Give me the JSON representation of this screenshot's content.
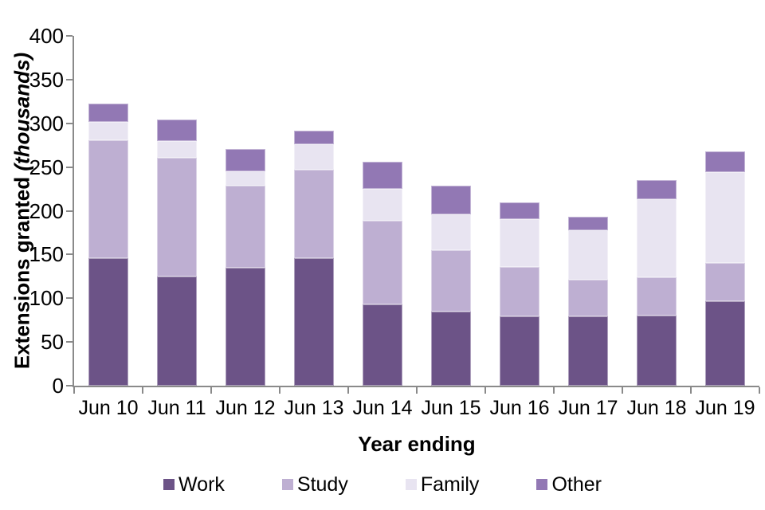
{
  "chart_data": {
    "type": "bar",
    "stacked": true,
    "xlabel": "Year ending",
    "ylabel_main": "Extensions granted",
    "ylabel_unit": "(thousands)",
    "ylim": [
      0,
      400
    ],
    "ytick_step": 50,
    "grid": false,
    "legend_position": "bottom",
    "categories": [
      "Jun 10",
      "Jun 11",
      "Jun 12",
      "Jun 13",
      "Jun 14",
      "Jun 15",
      "Jun 16",
      "Jun 17",
      "Jun 18",
      "Jun 19"
    ],
    "series": [
      {
        "name": "Work",
        "color": "#6c5387",
        "values": [
          146,
          125,
          135,
          146,
          93,
          85,
          79,
          79,
          80,
          97
        ]
      },
      {
        "name": "Study",
        "color": "#beafd2",
        "values": [
          135,
          136,
          94,
          101,
          96,
          70,
          57,
          42,
          44,
          43
        ]
      },
      {
        "name": "Family",
        "color": "#e8e4f1",
        "values": [
          21,
          19,
          16,
          29,
          36,
          41,
          54,
          57,
          89,
          104
        ]
      },
      {
        "name": "Other",
        "color": "#9278b4",
        "values": [
          21,
          24,
          26,
          16,
          31,
          33,
          20,
          15,
          22,
          24
        ]
      }
    ],
    "totals": [
      323,
      304,
      271,
      292,
      256,
      229,
      210,
      193,
      235,
      268
    ],
    "axis_color": "#8a8a8a",
    "text_color": "#000000"
  }
}
